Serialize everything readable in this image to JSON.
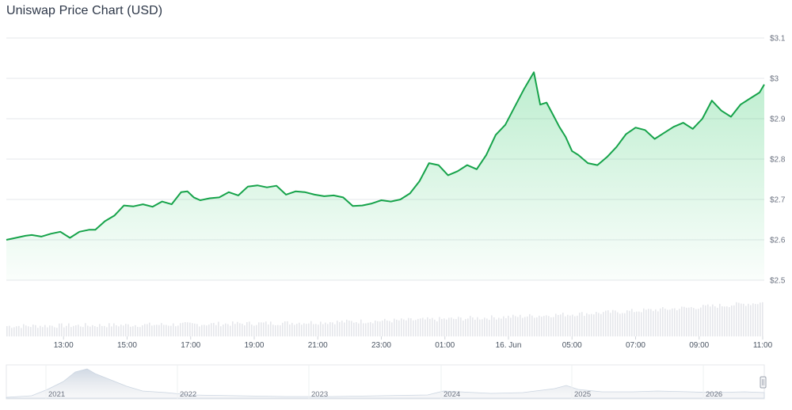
{
  "chart_data": {
    "type": "area",
    "title": "Uniswap Price Chart (USD)",
    "xlabel": "",
    "ylabel": "",
    "currency": "USD",
    "ylim": [
      2.5,
      3.1
    ],
    "y_ticks": [
      "$3.1",
      "$3",
      "$2.9",
      "$2.8",
      "$2.7",
      "$2.6",
      "$2.5"
    ],
    "y_tick_values": [
      3.1,
      3.0,
      2.9,
      2.8,
      2.7,
      2.6,
      2.5
    ],
    "x_ticks": [
      "13:00",
      "15:00",
      "17:00",
      "19:00",
      "21:00",
      "23:00",
      "01:00",
      "16. Jun",
      "05:00",
      "07:00",
      "09:00",
      "11:00"
    ],
    "x_tick_hours": [
      13,
      15,
      17,
      19,
      21,
      23,
      25,
      27,
      29,
      31,
      33,
      35
    ],
    "x_range_hours": [
      11.2,
      35.05
    ],
    "series": [
      {
        "line_color": "#16a34a",
        "x": [
          11.2,
          11.5,
          11.8,
          12.0,
          12.3,
          12.6,
          12.9,
          13.2,
          13.5,
          13.8,
          14.0,
          14.3,
          14.6,
          14.9,
          15.2,
          15.5,
          15.8,
          16.1,
          16.4,
          16.7,
          16.9,
          17.1,
          17.3,
          17.6,
          17.9,
          18.2,
          18.5,
          18.8,
          19.1,
          19.4,
          19.7,
          20.0,
          20.3,
          20.6,
          20.9,
          21.2,
          21.5,
          21.8,
          22.1,
          22.4,
          22.7,
          23.0,
          23.3,
          23.6,
          23.9,
          24.2,
          24.5,
          24.8,
          25.1,
          25.4,
          25.7,
          26.0,
          26.3,
          26.6,
          26.9,
          27.2,
          27.5,
          27.8,
          28.0,
          28.2,
          28.4,
          28.6,
          28.8,
          29.0,
          29.2,
          29.5,
          29.8,
          30.1,
          30.4,
          30.7,
          31.0,
          31.3,
          31.6,
          31.9,
          32.2,
          32.5,
          32.8,
          33.1,
          33.4,
          33.7,
          34.0,
          34.3,
          34.6,
          34.9,
          35.05
        ],
        "values": [
          2.6,
          2.605,
          2.61,
          2.612,
          2.608,
          2.615,
          2.62,
          2.605,
          2.62,
          2.625,
          2.625,
          2.646,
          2.66,
          2.685,
          2.683,
          2.688,
          2.682,
          2.695,
          2.688,
          2.718,
          2.72,
          2.705,
          2.698,
          2.703,
          2.705,
          2.718,
          2.71,
          2.732,
          2.735,
          2.73,
          2.734,
          2.712,
          2.72,
          2.718,
          2.712,
          2.708,
          2.71,
          2.705,
          2.684,
          2.685,
          2.69,
          2.698,
          2.695,
          2.7,
          2.715,
          2.745,
          2.79,
          2.785,
          2.76,
          2.77,
          2.785,
          2.775,
          2.81,
          2.86,
          2.885,
          2.93,
          2.975,
          3.015,
          2.935,
          2.94,
          2.91,
          2.88,
          2.855,
          2.82,
          2.81,
          2.79,
          2.785,
          2.805,
          2.83,
          2.862,
          2.878,
          2.872,
          2.85,
          2.865,
          2.88,
          2.89,
          2.875,
          2.9,
          2.945,
          2.92,
          2.905,
          2.935,
          2.95,
          2.965,
          2.985
        ]
      }
    ],
    "navigator": {
      "year_labels": [
        "2021",
        "2022",
        "2023",
        "2024",
        "2025",
        "2026"
      ]
    }
  }
}
